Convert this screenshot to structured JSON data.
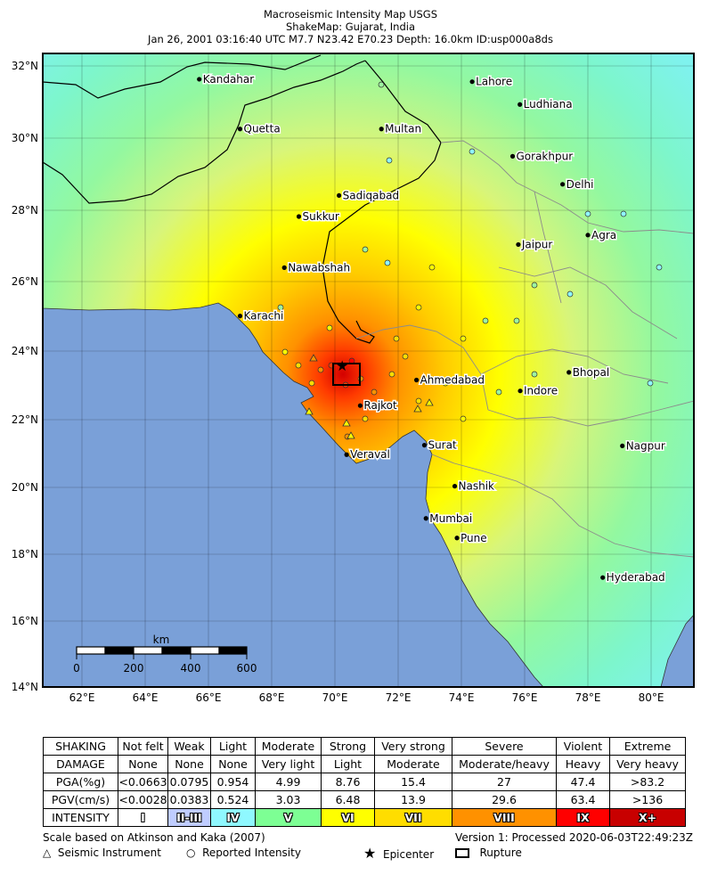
{
  "header": {
    "line1": "Macroseismic Intensity Map USGS",
    "line2": "ShakeMap: Gujarat, India",
    "line3": "Jan 26, 2001 03:16:40 UTC M7.7 N23.42 E70.23 Depth: 16.0km ID:usp000a8ds"
  },
  "axes": {
    "lat_labels": [
      "32°N",
      "30°N",
      "28°N",
      "26°N",
      "24°N",
      "22°N",
      "20°N",
      "18°N",
      "16°N",
      "14°N"
    ],
    "lon_labels": [
      "62°E",
      "64°E",
      "66°E",
      "68°E",
      "70°E",
      "72°E",
      "74°E",
      "76°E",
      "78°E",
      "80°E"
    ]
  },
  "scalebar": {
    "unit": "km",
    "labels": [
      "0",
      "200",
      "400",
      "600"
    ]
  },
  "epicenter": {
    "lat": 23.42,
    "lon": 70.23
  },
  "cities": [
    {
      "name": "Kandahar",
      "lon": 65.71,
      "lat": 31.62
    },
    {
      "name": "Quetta",
      "lon": 67.0,
      "lat": 30.2
    },
    {
      "name": "Multan",
      "lon": 71.47,
      "lat": 30.2
    },
    {
      "name": "Lahore",
      "lon": 74.34,
      "lat": 31.55
    },
    {
      "name": "Ludhiana",
      "lon": 75.85,
      "lat": 30.9
    },
    {
      "name": "Gorakhpur",
      "lon": 75.62,
      "lat": 29.42
    },
    {
      "name": "Delhi",
      "lon": 77.2,
      "lat": 28.62
    },
    {
      "name": "Sadiqabad",
      "lon": 70.13,
      "lat": 28.3
    },
    {
      "name": "Sukkur",
      "lon": 68.86,
      "lat": 27.7
    },
    {
      "name": "Agra",
      "lon": 78.0,
      "lat": 27.17
    },
    {
      "name": "Jaipur",
      "lon": 75.8,
      "lat": 26.9
    },
    {
      "name": "Nawabshah",
      "lon": 68.4,
      "lat": 26.24
    },
    {
      "name": "Karachi",
      "lon": 67.0,
      "lat": 24.86
    },
    {
      "name": "Bhopal",
      "lon": 77.4,
      "lat": 23.25
    },
    {
      "name": "Ahmedabad",
      "lon": 72.58,
      "lat": 23.03
    },
    {
      "name": "Indore",
      "lon": 75.86,
      "lat": 22.72
    },
    {
      "name": "Rajkot",
      "lon": 70.8,
      "lat": 22.3
    },
    {
      "name": "Surat",
      "lon": 72.83,
      "lat": 21.17
    },
    {
      "name": "Nagpur",
      "lon": 79.09,
      "lat": 21.15
    },
    {
      "name": "Veraval",
      "lon": 70.37,
      "lat": 20.9
    },
    {
      "name": "Nashik",
      "lon": 73.79,
      "lat": 20.0
    },
    {
      "name": "Mumbai",
      "lon": 72.88,
      "lat": 19.08
    },
    {
      "name": "Pune",
      "lon": 73.86,
      "lat": 18.52
    },
    {
      "name": "Hyderabad",
      "lon": 78.47,
      "lat": 17.39
    }
  ],
  "legend": {
    "row_labels": [
      "SHAKING",
      "DAMAGE",
      "PGA(%g)",
      "PGV(cm/s)",
      "INTENSITY"
    ],
    "columns": [
      {
        "shaking": "Not felt",
        "damage": "None",
        "pga": "<0.0663",
        "pgv": "<0.0028",
        "intensity": "I",
        "color": "#ffffff"
      },
      {
        "shaking": "Weak",
        "damage": "None",
        "pga": "0.0795",
        "pgv": "0.0383",
        "intensity": "II-III",
        "color": "#bfccff"
      },
      {
        "shaking": "Light",
        "damage": "None",
        "pga": "0.954",
        "pgv": "0.524",
        "intensity": "IV",
        "color": "#8ff8ff"
      },
      {
        "shaking": "Moderate",
        "damage": "Very light",
        "pga": "4.99",
        "pgv": "3.03",
        "intensity": "V",
        "color": "#7dff94"
      },
      {
        "shaking": "Strong",
        "damage": "Light",
        "pga": "8.76",
        "pgv": "6.48",
        "intensity": "VI",
        "color": "#ffff00"
      },
      {
        "shaking": "Very strong",
        "damage": "Moderate",
        "pga": "15.4",
        "pgv": "13.9",
        "intensity": "VII",
        "color": "#ffdd00"
      },
      {
        "shaking": "Severe",
        "damage": "Moderate/heavy",
        "pga": "27",
        "pgv": "29.6",
        "intensity": "VIII",
        "color": "#ff9100"
      },
      {
        "shaking": "Violent",
        "damage": "Heavy",
        "pga": "47.4",
        "pgv": "63.4",
        "intensity": "IX",
        "color": "#ff0000"
      },
      {
        "shaking": "Extreme",
        "damage": "Very heavy",
        "pga": ">83.2",
        "pgv": ">136",
        "intensity": "X+",
        "color": "#c80000"
      }
    ]
  },
  "footer": {
    "scale_note": "Scale based on Atkinson and Kaka (2007)",
    "version": "Version 1: Processed 2020-06-03T22:49:23Z",
    "seismic_instrument": "Seismic Instrument",
    "reported_intensity": "Reported Intensity",
    "epicenter": "Epicenter",
    "rupture": "Rupture"
  },
  "colors": {
    "ocean": "#7aa0d8",
    "border": "#000000",
    "state_border": "#8c8c8c"
  }
}
